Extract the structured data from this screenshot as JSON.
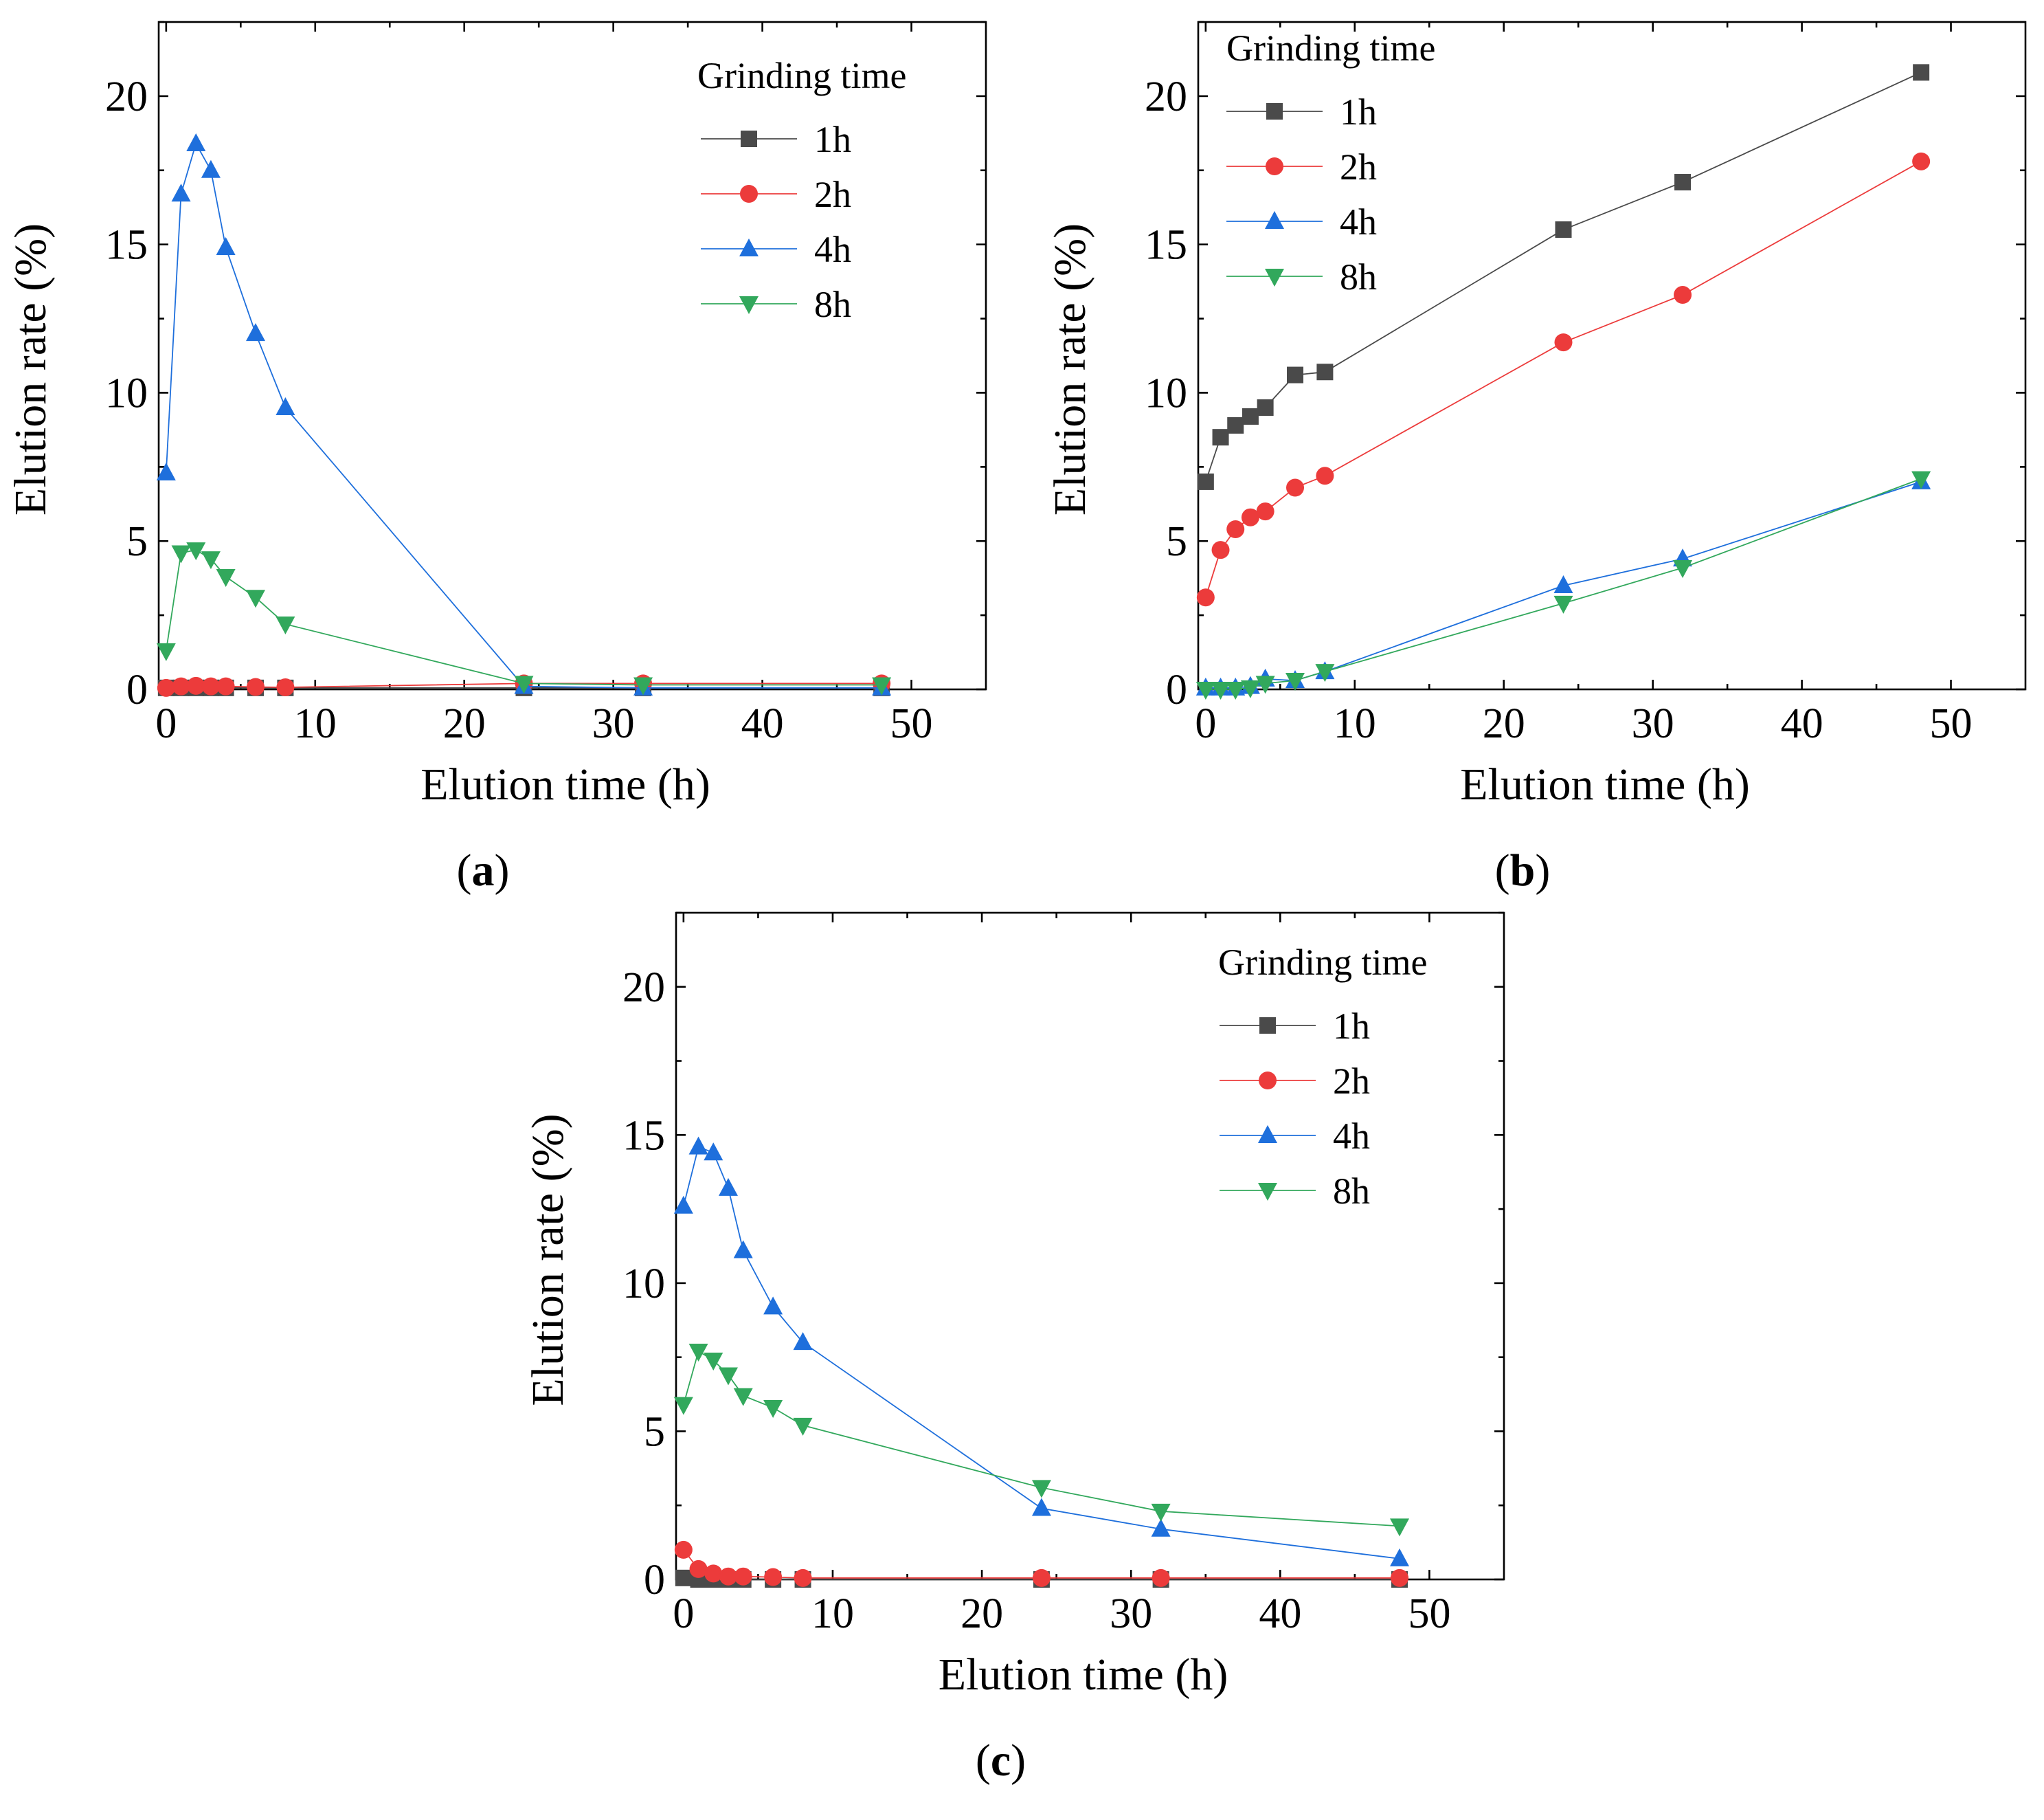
{
  "colors": {
    "1h": "#4a4a4a",
    "2h": "#ec3b3b",
    "4h": "#1e6fdc",
    "8h": "#32a85c"
  },
  "chart_data": [
    {
      "type": "line",
      "panel_label": "a",
      "xlabel": "Elution time (h)",
      "ylabel": "Elution rate (%)",
      "xlim": [
        -0.5,
        55
      ],
      "ylim": [
        0,
        22.5
      ],
      "xticks": [
        0,
        10,
        20,
        30,
        40,
        50
      ],
      "yticks": [
        0,
        5,
        10,
        15,
        20
      ],
      "legend_title": "Grinding time",
      "legend_position": "top-right",
      "x": [
        0,
        1,
        2,
        3,
        4,
        6,
        8,
        24,
        32,
        48
      ],
      "series": [
        {
          "name": "1h",
          "marker": "square",
          "values": [
            0.05,
            0.05,
            0.05,
            0.05,
            0.05,
            0.05,
            0.05,
            0.05,
            0.05,
            0.05
          ]
        },
        {
          "name": "2h",
          "marker": "circle",
          "values": [
            0.05,
            0.1,
            0.12,
            0.1,
            0.1,
            0.08,
            0.07,
            0.2,
            0.2,
            0.2
          ]
        },
        {
          "name": "4h",
          "marker": "triangle-up",
          "values": [
            7.3,
            16.7,
            18.4,
            17.5,
            14.9,
            12.0,
            9.5,
            0.1,
            0.05,
            0.05
          ]
        },
        {
          "name": "8h",
          "marker": "triangle-down",
          "values": [
            1.3,
            4.6,
            4.7,
            4.4,
            3.8,
            3.1,
            2.2,
            0.2,
            0.15,
            0.15
          ]
        }
      ]
    },
    {
      "type": "line",
      "panel_label": "b",
      "xlabel": "Elution time (h)",
      "ylabel": "Elution rate (%)",
      "xlim": [
        -0.5,
        55
      ],
      "ylim": [
        0,
        22.5
      ],
      "xticks": [
        0,
        10,
        20,
        30,
        40,
        50
      ],
      "yticks": [
        0,
        5,
        10,
        15,
        20
      ],
      "legend_title": "Grinding time",
      "legend_position": "top-left",
      "x": [
        0,
        1,
        2,
        3,
        4,
        6,
        8,
        24,
        32,
        48
      ],
      "series": [
        {
          "name": "1h",
          "marker": "square",
          "values": [
            7.0,
            8.5,
            8.9,
            9.2,
            9.5,
            10.6,
            10.7,
            15.5,
            17.1,
            20.8
          ]
        },
        {
          "name": "2h",
          "marker": "circle",
          "values": [
            3.1,
            4.7,
            5.4,
            5.8,
            6.0,
            6.8,
            7.2,
            11.7,
            13.3,
            17.8
          ]
        },
        {
          "name": "4h",
          "marker": "triangle-up",
          "values": [
            0.05,
            0.05,
            0.05,
            0.1,
            0.35,
            0.3,
            0.6,
            3.5,
            4.4,
            7.0
          ]
        },
        {
          "name": "8h",
          "marker": "triangle-down",
          "values": [
            0.0,
            0.0,
            0.0,
            0.05,
            0.2,
            0.3,
            0.6,
            2.9,
            4.1,
            7.1
          ]
        }
      ]
    },
    {
      "type": "line",
      "panel_label": "c",
      "xlabel": "Elution time (h)",
      "ylabel": "Elution rate (%)",
      "xlim": [
        -0.5,
        55
      ],
      "ylim": [
        0,
        22.5
      ],
      "xticks": [
        0,
        10,
        20,
        30,
        40,
        50
      ],
      "yticks": [
        0,
        5,
        10,
        15,
        20
      ],
      "legend_title": "Grinding time",
      "legend_position": "top-right",
      "x": [
        0,
        1,
        2,
        3,
        4,
        6,
        8,
        24,
        32,
        48
      ],
      "series": [
        {
          "name": "1h",
          "marker": "square",
          "values": [
            0.05,
            0.0,
            0.0,
            0.0,
            0.0,
            0.0,
            0.0,
            0.0,
            0.0,
            0.0
          ]
        },
        {
          "name": "2h",
          "marker": "circle",
          "values": [
            1.0,
            0.35,
            0.2,
            0.1,
            0.1,
            0.08,
            0.05,
            0.05,
            0.05,
            0.05
          ]
        },
        {
          "name": "4h",
          "marker": "triangle-up",
          "values": [
            12.6,
            14.6,
            14.4,
            13.2,
            11.1,
            9.2,
            8.0,
            2.4,
            1.7,
            0.7
          ]
        },
        {
          "name": "8h",
          "marker": "triangle-down",
          "values": [
            5.9,
            7.7,
            7.4,
            6.9,
            6.2,
            5.8,
            5.2,
            3.1,
            2.3,
            1.8
          ]
        }
      ]
    }
  ]
}
